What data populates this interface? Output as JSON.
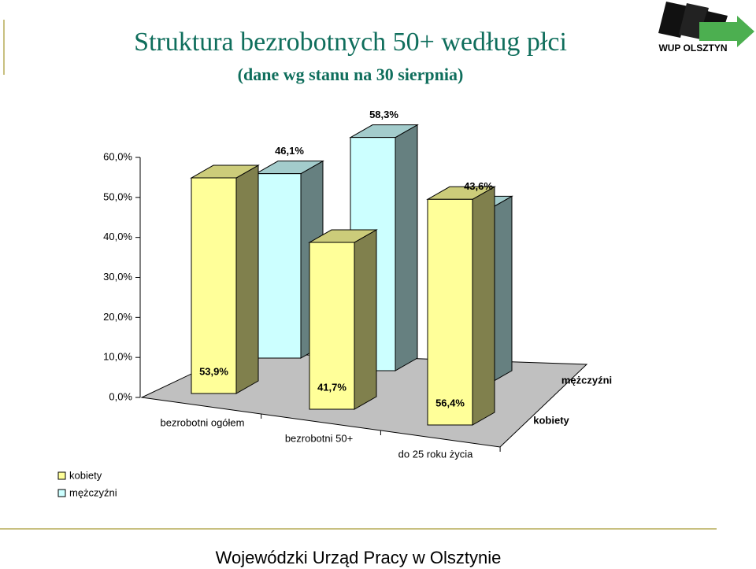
{
  "chart_data": {
    "type": "bar3d",
    "title": "Struktura bezrobotnych 50+ według płci",
    "subtitle": "(dane wg stanu na 30 sierpnia)",
    "categories": [
      "bezrobotni ogółem",
      "bezrobotni 50+",
      "do 25 roku życia"
    ],
    "series": [
      {
        "name": "kobiety",
        "color": "#ffff99",
        "values": [
          53.9,
          41.7,
          56.4
        ],
        "value_labels": [
          "53,9%",
          "41,7%",
          "56,4%"
        ]
      },
      {
        "name": "mężczyźni",
        "color": "#ccffff",
        "values": [
          46.1,
          58.3,
          43.6
        ],
        "value_labels": [
          "46,1%",
          "58,3%",
          "43,6%"
        ]
      }
    ],
    "ylim": [
      0,
      60
    ],
    "yticks": [
      {
        "value": 0,
        "label": "0,0%"
      },
      {
        "value": 10,
        "label": "10,0%"
      },
      {
        "value": 20,
        "label": "20,0%"
      },
      {
        "value": 30,
        "label": "30,0%"
      },
      {
        "value": 40,
        "label": "40,0%"
      },
      {
        "value": 50,
        "label": "50,0%"
      },
      {
        "value": 60,
        "label": "60,0%"
      }
    ],
    "legend": "bottom-left"
  },
  "logo_text": "WUP OLSZTYN",
  "footer": "Wojewódzki Urząd Pracy w Olsztynie"
}
